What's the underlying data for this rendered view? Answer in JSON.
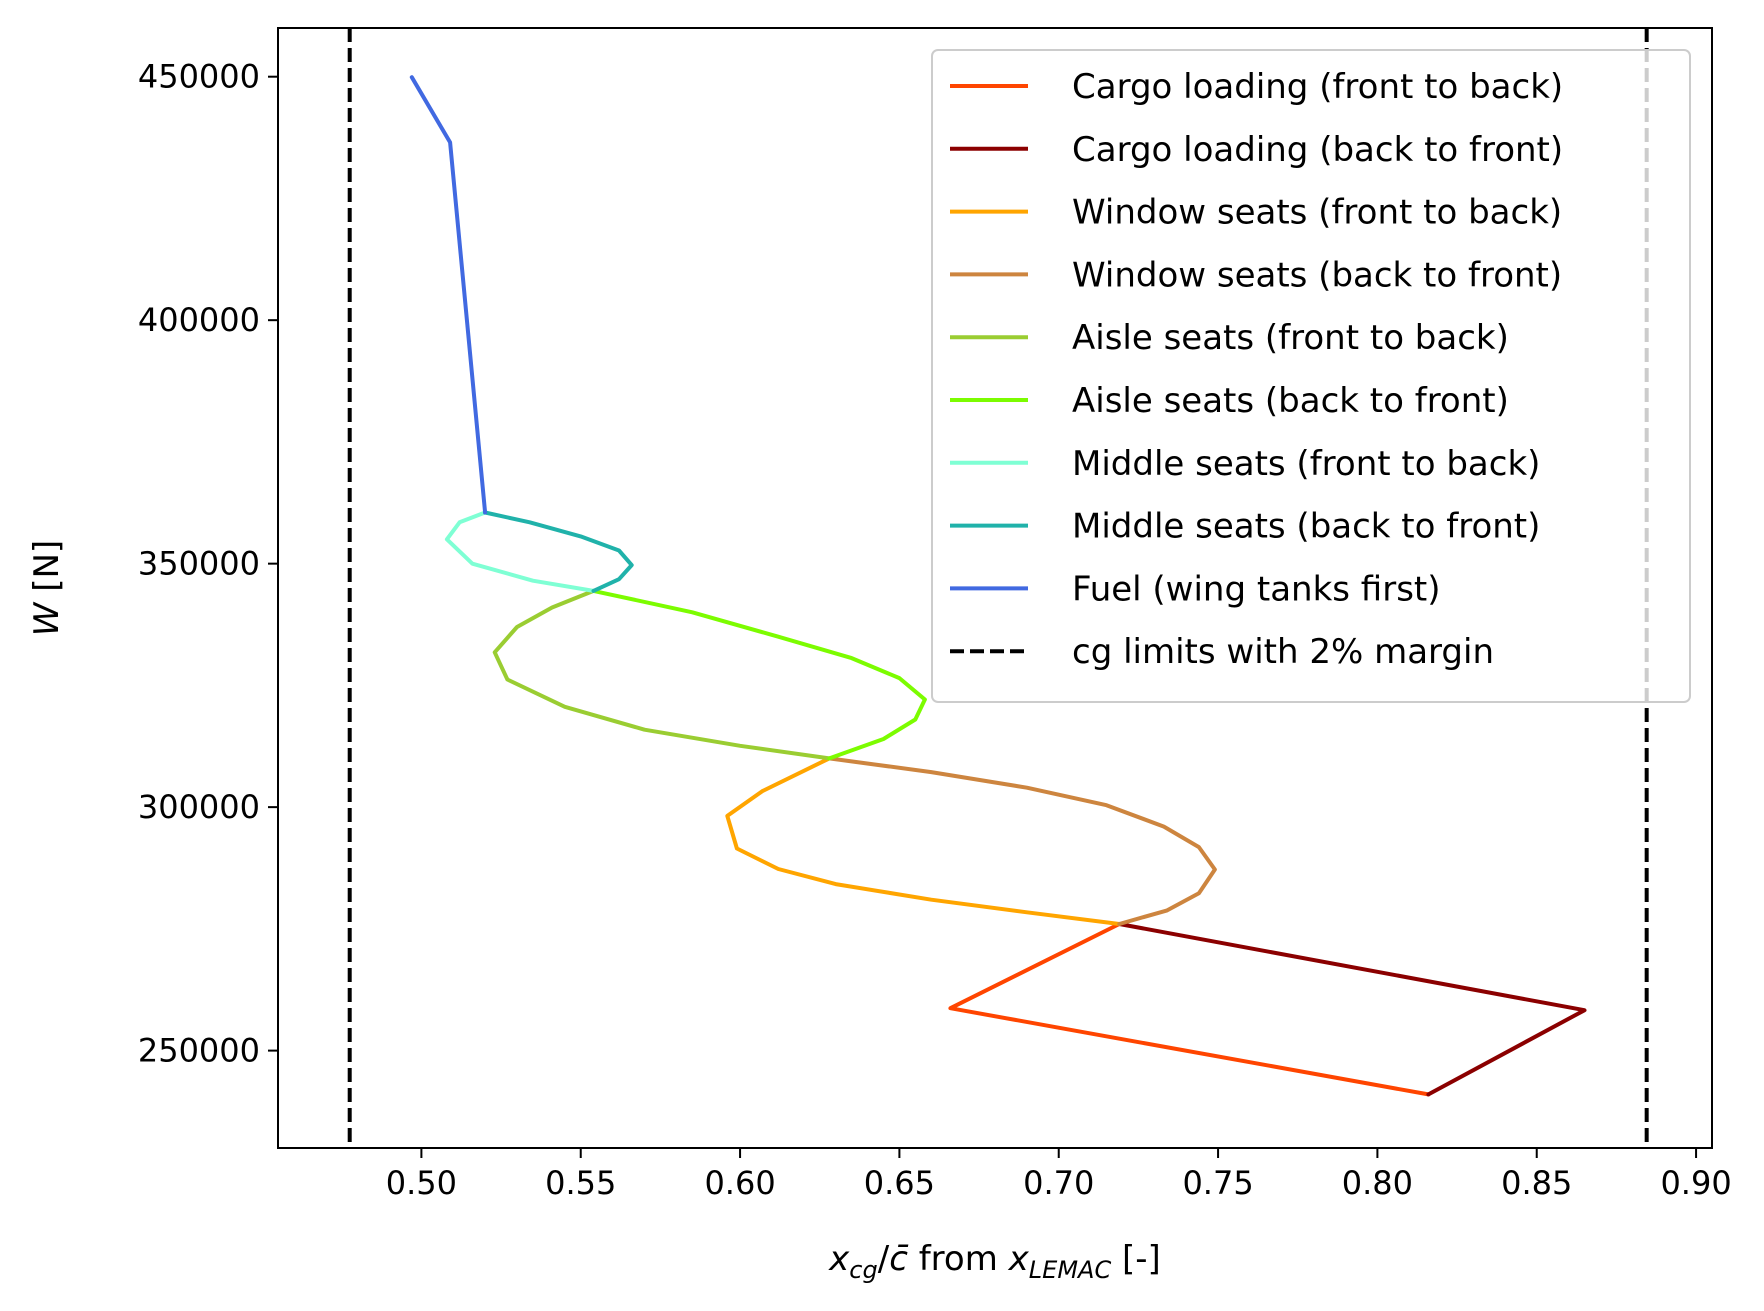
{
  "chart_data": {
    "type": "line",
    "title": "",
    "xlabel": {
      "var": "x",
      "var_sub": "cg",
      "slash": "/",
      "cbar": "c̄",
      "mid": " from ",
      "var2": "x",
      "var2_sub": "LEMAC",
      "unit": " [-]"
    },
    "ylabel": {
      "var": "W",
      "unit": " [N]"
    },
    "xlim": [
      0.455,
      0.905
    ],
    "ylim": [
      230000,
      460000
    ],
    "xticks": [
      0.5,
      0.55,
      0.6,
      0.65,
      0.7,
      0.75,
      0.8,
      0.85,
      0.9
    ],
    "xtick_labels": [
      "0.50",
      "0.55",
      "0.60",
      "0.65",
      "0.70",
      "0.75",
      "0.80",
      "0.85",
      "0.90"
    ],
    "yticks": [
      250000,
      300000,
      350000,
      400000,
      450000
    ],
    "ytick_labels": [
      "250000",
      "300000",
      "350000",
      "400000",
      "450000"
    ],
    "legend_position": "top-right",
    "series": [
      {
        "name": "Cargo loading (front to back)",
        "color": "#ff4500",
        "dash": false,
        "points": [
          [
            0.816,
            241000
          ],
          [
            0.666,
            258700
          ],
          [
            0.719,
            276000
          ]
        ]
      },
      {
        "name": "Cargo loading (back to front)",
        "color": "#8b0000",
        "dash": false,
        "points": [
          [
            0.816,
            241000
          ],
          [
            0.865,
            258300
          ],
          [
            0.719,
            276000
          ]
        ]
      },
      {
        "name": "Window seats (front to back)",
        "color": "#ffa500",
        "dash": false,
        "points": [
          [
            0.719,
            276000
          ],
          [
            0.69,
            278400
          ],
          [
            0.66,
            281000
          ],
          [
            0.63,
            284200
          ],
          [
            0.612,
            287300
          ],
          [
            0.599,
            291500
          ],
          [
            0.596,
            298200
          ],
          [
            0.607,
            303300
          ],
          [
            0.628,
            310000
          ]
        ]
      },
      {
        "name": "Window seats (back to front)",
        "color": "#cd853f",
        "dash": false,
        "points": [
          [
            0.719,
            276000
          ],
          [
            0.734,
            278800
          ],
          [
            0.744,
            282300
          ],
          [
            0.749,
            287200
          ],
          [
            0.744,
            291800
          ],
          [
            0.733,
            296000
          ],
          [
            0.715,
            300400
          ],
          [
            0.69,
            304000
          ],
          [
            0.66,
            307200
          ],
          [
            0.628,
            310000
          ]
        ]
      },
      {
        "name": "Aisle seats (front to back)",
        "color": "#9acd32",
        "dash": false,
        "points": [
          [
            0.628,
            310000
          ],
          [
            0.6,
            312600
          ],
          [
            0.57,
            315900
          ],
          [
            0.545,
            320600
          ],
          [
            0.527,
            326200
          ],
          [
            0.523,
            331800
          ],
          [
            0.53,
            337000
          ],
          [
            0.541,
            341000
          ],
          [
            0.554,
            344400
          ]
        ]
      },
      {
        "name": "Aisle seats (back to front)",
        "color": "#7cfc00",
        "dash": false,
        "points": [
          [
            0.628,
            310000
          ],
          [
            0.645,
            314000
          ],
          [
            0.655,
            318000
          ],
          [
            0.658,
            322100
          ],
          [
            0.65,
            326500
          ],
          [
            0.635,
            330600
          ],
          [
            0.612,
            335000
          ],
          [
            0.585,
            340000
          ],
          [
            0.554,
            344400
          ]
        ]
      },
      {
        "name": "Middle seats (front to back)",
        "color": "#7fffd4",
        "dash": false,
        "points": [
          [
            0.554,
            344400
          ],
          [
            0.535,
            346500
          ],
          [
            0.516,
            350000
          ],
          [
            0.508,
            355000
          ],
          [
            0.512,
            358500
          ],
          [
            0.52,
            360500
          ]
        ]
      },
      {
        "name": "Middle seats (back to front)",
        "color": "#20b2aa",
        "dash": false,
        "points": [
          [
            0.554,
            344400
          ],
          [
            0.562,
            346800
          ],
          [
            0.566,
            349700
          ],
          [
            0.562,
            352700
          ],
          [
            0.55,
            355600
          ],
          [
            0.534,
            358500
          ],
          [
            0.52,
            360500
          ]
        ]
      },
      {
        "name": "Fuel (wing tanks first)",
        "color": "#4169e1",
        "dash": false,
        "points": [
          [
            0.52,
            360500
          ],
          [
            0.509,
            436500
          ],
          [
            0.497,
            449900
          ]
        ]
      },
      {
        "name": "cg limits with 2% margin",
        "color": "#000000",
        "dash": true,
        "vlines": [
          0.4775,
          0.8845
        ]
      }
    ]
  }
}
